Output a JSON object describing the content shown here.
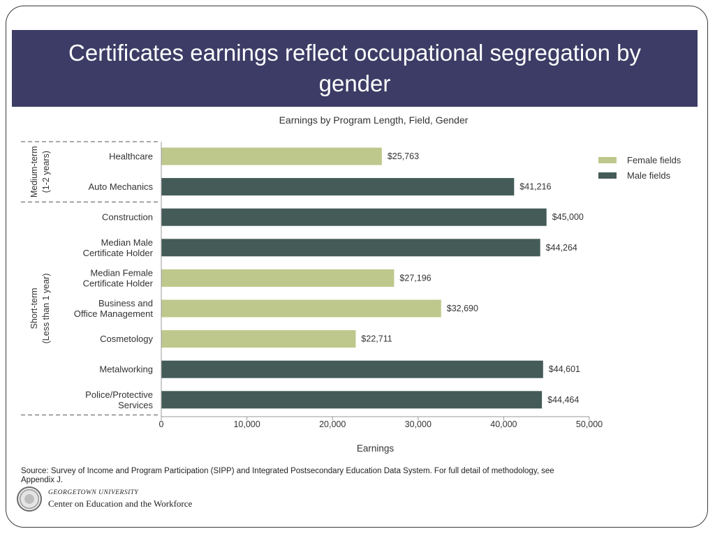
{
  "slide": {
    "title": "Certificates earnings reflect occupational segregation by gender"
  },
  "chart_data": {
    "type": "bar",
    "orientation": "horizontal",
    "title": "Earnings by Program Length, Field, Gender",
    "xlabel": "Earnings",
    "xlim": [
      0,
      50000
    ],
    "xticks": [
      "0",
      "10,000",
      "20,000",
      "30,000",
      "40,000",
      "50,000"
    ],
    "grid": false,
    "legend_position": "top-right",
    "legend": [
      {
        "name": "Female fields",
        "color": "#bec88c"
      },
      {
        "name": "Male fields",
        "color": "#445b58"
      }
    ],
    "groups": [
      {
        "label_line1": "Medium-term",
        "label_line2": "(1-2 years)",
        "count": 2
      },
      {
        "label_line1": "Short-term",
        "label_line2": "(Less than 1 year)",
        "count": 7
      }
    ],
    "bars": [
      {
        "label": [
          "Healthcare"
        ],
        "value": 25763,
        "value_label": "$25,763",
        "series": "Female fields"
      },
      {
        "label": [
          "Auto Mechanics"
        ],
        "value": 41216,
        "value_label": "$41,216",
        "series": "Male fields"
      },
      {
        "label": [
          "Construction"
        ],
        "value": 45000,
        "value_label": "$45,000",
        "series": "Male fields"
      },
      {
        "label": [
          "Median Male",
          "Certificate Holder"
        ],
        "value": 44264,
        "value_label": "$44,264",
        "series": "Male fields"
      },
      {
        "label": [
          "Median Female",
          "Certificate Holder"
        ],
        "value": 27196,
        "value_label": "$27,196",
        "series": "Female fields"
      },
      {
        "label": [
          "Business and",
          "Office Management"
        ],
        "value": 32690,
        "value_label": "$32,690",
        "series": "Female fields"
      },
      {
        "label": [
          "Cosmetology"
        ],
        "value": 22711,
        "value_label": "$22,711",
        "series": "Female fields"
      },
      {
        "label": [
          "Metalworking"
        ],
        "value": 44601,
        "value_label": "$44,601",
        "series": "Male fields"
      },
      {
        "label": [
          "Police/Protective",
          "Services"
        ],
        "value": 44464,
        "value_label": "$44,464",
        "series": "Male fields"
      }
    ]
  },
  "source": {
    "text": "Source: Survey of Income and Program Participation (SIPP) and Integrated Postsecondary Education Data System. For full detail of methodology, see Appendix J."
  },
  "logo": {
    "line1": "GEORGETOWN UNIVERSITY",
    "line2": "Center on Education and the Workforce"
  }
}
